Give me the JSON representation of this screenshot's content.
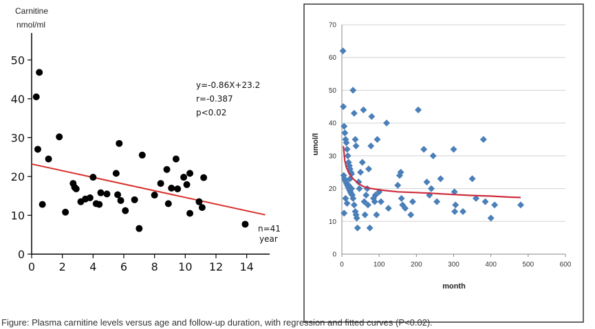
{
  "chart_data": [
    {
      "type": "scatter",
      "title": "",
      "ylabel_line1": "Carnitine",
      "ylabel_line2": "nmol/ml",
      "xlabel_unit": "year",
      "xlim": [
        0,
        15
      ],
      "ylim": [
        0,
        55
      ],
      "xticks": [
        0,
        2,
        4,
        6,
        8,
        10,
        12,
        14
      ],
      "yticks": [
        0,
        10,
        20,
        30,
        40,
        50
      ],
      "annotations": {
        "equation": "y=-0.86X+23.2",
        "r": "r=-0.387",
        "p": "p<0.02",
        "n": "n=41"
      },
      "regression": {
        "slope": -0.86,
        "intercept": 23.2,
        "x_range": [
          0,
          15.2
        ],
        "color": "#d9302b"
      },
      "point_color": "#000000",
      "points": [
        [
          0.3,
          40.5
        ],
        [
          0.5,
          46.8
        ],
        [
          0.4,
          27
        ],
        [
          0.7,
          12.8
        ],
        [
          1.1,
          24.5
        ],
        [
          1.8,
          30.2
        ],
        [
          2.2,
          10.8
        ],
        [
          2.7,
          18.2
        ],
        [
          2.8,
          17.2
        ],
        [
          2.9,
          16.8
        ],
        [
          3.2,
          13.5
        ],
        [
          3.5,
          14.2
        ],
        [
          3.8,
          14.5
        ],
        [
          4.0,
          19.8
        ],
        [
          4.2,
          13
        ],
        [
          4.4,
          12.8
        ],
        [
          4.5,
          15.8
        ],
        [
          4.9,
          15.5
        ],
        [
          5.5,
          20.8
        ],
        [
          5.6,
          15.3
        ],
        [
          5.7,
          28.5
        ],
        [
          5.8,
          13.8
        ],
        [
          6.1,
          11.2
        ],
        [
          6.7,
          14
        ],
        [
          7.0,
          6.6
        ],
        [
          7.2,
          25.5
        ],
        [
          8.0,
          15.2
        ],
        [
          8.4,
          18.2
        ],
        [
          8.8,
          21.8
        ],
        [
          8.9,
          13
        ],
        [
          9.1,
          17
        ],
        [
          9.4,
          24.5
        ],
        [
          9.5,
          16.8
        ],
        [
          9.9,
          19.8
        ],
        [
          10.1,
          17.9
        ],
        [
          10.3,
          20.8
        ],
        [
          10.3,
          10.5
        ],
        [
          10.9,
          13.5
        ],
        [
          11.1,
          12
        ],
        [
          11.2,
          19.7
        ],
        [
          13.9,
          7.7
        ]
      ]
    },
    {
      "type": "scatter",
      "title": "",
      "xlabel": "month",
      "ylabel": "umol/l",
      "xlim": [
        0,
        600
      ],
      "ylim": [
        0,
        70
      ],
      "xticks": [
        0,
        100,
        200,
        300,
        400,
        500,
        600
      ],
      "yticks": [
        0,
        10,
        20,
        30,
        40,
        50,
        60,
        70
      ],
      "marker": "diamond",
      "point_color": "#4a7fb8",
      "fit_color": "#cc2a3a",
      "fit_points": [
        [
          4,
          33
        ],
        [
          8,
          28.5
        ],
        [
          12,
          26.5
        ],
        [
          20,
          24.5
        ],
        [
          30,
          23
        ],
        [
          45,
          21.5
        ],
        [
          60,
          20.5
        ],
        [
          80,
          20
        ],
        [
          110,
          19.5
        ],
        [
          150,
          19
        ],
        [
          200,
          18.8
        ],
        [
          250,
          18.5
        ],
        [
          300,
          18.2
        ],
        [
          350,
          17.9
        ],
        [
          400,
          17.7
        ],
        [
          450,
          17.4
        ],
        [
          480,
          17.3
        ]
      ],
      "points": [
        [
          3,
          62
        ],
        [
          4,
          45
        ],
        [
          6,
          39
        ],
        [
          8,
          37
        ],
        [
          10,
          35
        ],
        [
          12,
          34
        ],
        [
          14,
          32
        ],
        [
          16,
          30
        ],
        [
          18,
          28
        ],
        [
          20,
          27
        ],
        [
          22,
          26
        ],
        [
          24,
          25
        ],
        [
          26,
          24.5
        ],
        [
          5,
          24
        ],
        [
          7,
          23
        ],
        [
          9,
          22.5
        ],
        [
          11,
          22
        ],
        [
          13,
          21.5
        ],
        [
          15,
          21
        ],
        [
          17,
          20.5
        ],
        [
          19,
          20
        ],
        [
          21,
          19.5
        ],
        [
          23,
          19
        ],
        [
          25,
          18.5
        ],
        [
          28,
          18
        ],
        [
          30,
          17
        ],
        [
          33,
          15
        ],
        [
          36,
          13
        ],
        [
          38,
          12
        ],
        [
          6,
          12.5
        ],
        [
          10,
          17
        ],
        [
          14,
          15.5
        ],
        [
          18,
          21
        ],
        [
          22,
          23
        ],
        [
          26,
          20
        ],
        [
          30,
          50
        ],
        [
          33,
          43
        ],
        [
          36,
          35
        ],
        [
          38,
          33
        ],
        [
          40,
          11
        ],
        [
          42,
          8
        ],
        [
          45,
          22
        ],
        [
          47,
          20
        ],
        [
          50,
          25
        ],
        [
          55,
          28
        ],
        [
          58,
          44
        ],
        [
          60,
          16
        ],
        [
          62,
          12
        ],
        [
          65,
          18
        ],
        [
          68,
          20
        ],
        [
          70,
          15
        ],
        [
          72,
          26
        ],
        [
          75,
          8
        ],
        [
          78,
          33
        ],
        [
          80,
          42
        ],
        [
          85,
          17
        ],
        [
          88,
          16
        ],
        [
          90,
          18
        ],
        [
          93,
          12
        ],
        [
          95,
          35
        ],
        [
          100,
          19
        ],
        [
          105,
          16
        ],
        [
          120,
          40
        ],
        [
          125,
          14
        ],
        [
          150,
          21
        ],
        [
          155,
          24
        ],
        [
          158,
          25
        ],
        [
          160,
          17
        ],
        [
          163,
          15
        ],
        [
          170,
          14
        ],
        [
          185,
          12
        ],
        [
          190,
          16
        ],
        [
          205,
          44
        ],
        [
          220,
          32
        ],
        [
          228,
          22
        ],
        [
          235,
          18
        ],
        [
          240,
          20
        ],
        [
          245,
          30
        ],
        [
          255,
          16
        ],
        [
          265,
          23
        ],
        [
          300,
          32
        ],
        [
          302,
          19
        ],
        [
          303,
          13
        ],
        [
          305,
          15
        ],
        [
          325,
          13
        ],
        [
          350,
          23
        ],
        [
          360,
          17
        ],
        [
          380,
          35
        ],
        [
          385,
          16
        ],
        [
          400,
          11
        ],
        [
          410,
          15
        ],
        [
          480,
          15
        ]
      ]
    }
  ],
  "caption": "Figure: Plasma carnitine levels versus age and follow-up duration, with regression and fitted curves (P<0.02)."
}
